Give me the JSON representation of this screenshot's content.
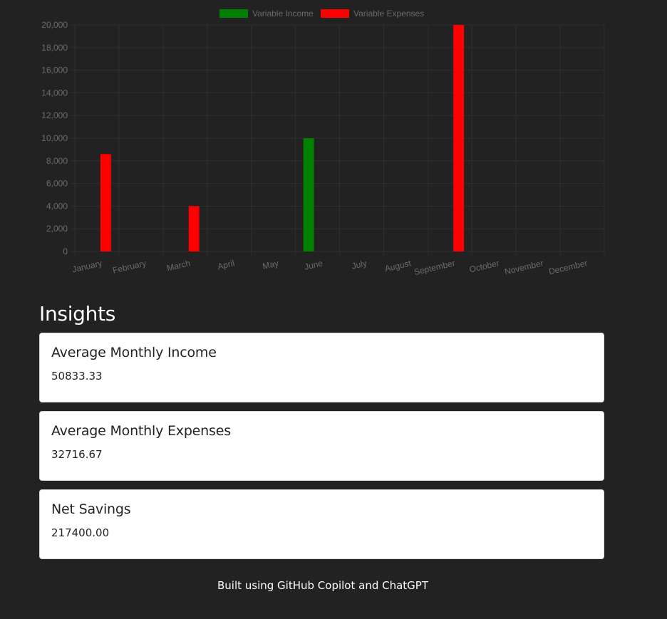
{
  "chart_data": {
    "type": "bar",
    "categories": [
      "January",
      "February",
      "March",
      "April",
      "May",
      "June",
      "July",
      "August",
      "September",
      "October",
      "November",
      "December"
    ],
    "series": [
      {
        "name": "Variable Income",
        "color": "#008000",
        "values": [
          0,
          0,
          0,
          0,
          0,
          10000,
          0,
          0,
          0,
          0,
          0,
          0
        ]
      },
      {
        "name": "Variable Expenses",
        "color": "#ff0000",
        "values": [
          8600,
          0,
          4000,
          0,
          0,
          0,
          0,
          0,
          20000,
          0,
          0,
          0
        ]
      }
    ],
    "y_ticks": [
      "0",
      "2,000",
      "4,000",
      "6,000",
      "8,000",
      "10,000",
      "12,000",
      "14,000",
      "16,000",
      "18,000",
      "20,000"
    ],
    "ylim": [
      0,
      20000
    ],
    "grid": true,
    "legend_position": "top"
  },
  "insights": {
    "title": "Insights",
    "cards": [
      {
        "title": "Average Monthly Income",
        "value": "50833.33"
      },
      {
        "title": "Average Monthly Expenses",
        "value": "32716.67"
      },
      {
        "title": "Net Savings",
        "value": "217400.00"
      }
    ]
  },
  "footer": {
    "text": "Built using GitHub Copilot and ChatGPT"
  }
}
